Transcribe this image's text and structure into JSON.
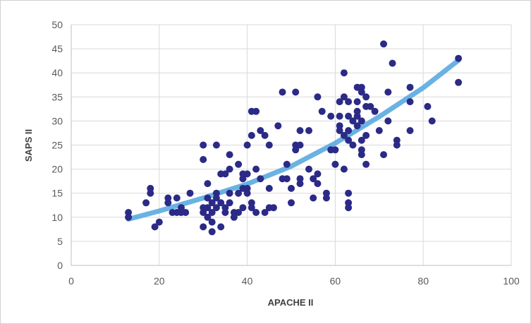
{
  "chart_data": {
    "type": "scatter",
    "title": "",
    "xlabel": "APACHE II",
    "ylabel": "SAPS II",
    "xlim": [
      0,
      100
    ],
    "ylim": [
      0,
      50
    ],
    "xticks": [
      0,
      20,
      40,
      60,
      80,
      100
    ],
    "yticks": [
      0,
      5,
      10,
      15,
      20,
      25,
      30,
      35,
      40,
      45,
      50
    ],
    "grid": true,
    "legend": "none",
    "colors": {
      "points": "#2b2a86",
      "trend": "#5aaae0",
      "grid": "#d9d9d9",
      "axis": "#bfbfbf"
    },
    "trendline": {
      "type": "polynomial",
      "x": [
        13,
        20,
        30,
        40,
        50,
        60,
        70,
        80,
        88
      ],
      "y": [
        9.6,
        11.3,
        14.0,
        16.9,
        20.6,
        25.4,
        30.9,
        36.9,
        42.6
      ]
    },
    "points": [
      [
        13,
        11
      ],
      [
        13,
        10
      ],
      [
        17,
        13
      ],
      [
        18,
        16
      ],
      [
        18,
        15
      ],
      [
        19,
        8
      ],
      [
        20,
        9
      ],
      [
        22,
        14
      ],
      [
        22,
        13
      ],
      [
        23,
        11
      ],
      [
        24,
        11
      ],
      [
        24,
        14
      ],
      [
        25,
        12
      ],
      [
        25,
        11
      ],
      [
        26,
        11
      ],
      [
        27,
        15
      ],
      [
        30,
        25
      ],
      [
        30,
        22
      ],
      [
        30,
        12
      ],
      [
        30,
        11
      ],
      [
        30,
        8
      ],
      [
        31,
        17
      ],
      [
        31,
        14
      ],
      [
        31,
        12
      ],
      [
        31,
        10
      ],
      [
        32,
        13
      ],
      [
        32,
        11
      ],
      [
        32,
        9
      ],
      [
        32,
        7
      ],
      [
        33,
        25
      ],
      [
        33,
        15
      ],
      [
        33,
        14
      ],
      [
        33,
        12
      ],
      [
        34,
        19
      ],
      [
        34,
        13
      ],
      [
        34,
        8
      ],
      [
        35,
        19
      ],
      [
        35,
        11
      ],
      [
        35,
        12
      ],
      [
        36,
        23
      ],
      [
        36,
        20
      ],
      [
        36,
        15
      ],
      [
        36,
        13
      ],
      [
        37,
        11
      ],
      [
        37,
        10
      ],
      [
        38,
        21
      ],
      [
        38,
        15
      ],
      [
        38,
        11
      ],
      [
        39,
        18
      ],
      [
        39,
        16
      ],
      [
        39,
        12
      ],
      [
        39,
        19
      ],
      [
        40,
        25
      ],
      [
        40,
        19
      ],
      [
        40,
        16
      ],
      [
        40,
        15
      ],
      [
        41,
        32
      ],
      [
        41,
        27
      ],
      [
        41,
        13
      ],
      [
        41,
        12
      ],
      [
        42,
        32
      ],
      [
        42,
        20
      ],
      [
        42,
        11
      ],
      [
        43,
        28
      ],
      [
        43,
        18
      ],
      [
        44,
        27
      ],
      [
        44,
        11
      ],
      [
        45,
        25
      ],
      [
        45,
        16
      ],
      [
        45,
        12
      ],
      [
        46,
        12
      ],
      [
        47,
        29
      ],
      [
        48,
        36
      ],
      [
        48,
        18
      ],
      [
        49,
        21
      ],
      [
        49,
        18
      ],
      [
        50,
        16
      ],
      [
        50,
        13
      ],
      [
        51,
        36
      ],
      [
        51,
        25
      ],
      [
        51,
        24
      ],
      [
        52,
        28
      ],
      [
        52,
        25
      ],
      [
        52,
        18
      ],
      [
        52,
        17
      ],
      [
        54,
        28
      ],
      [
        54,
        20
      ],
      [
        55,
        14
      ],
      [
        55,
        18
      ],
      [
        56,
        35
      ],
      [
        56,
        19
      ],
      [
        56,
        17
      ],
      [
        57,
        32
      ],
      [
        58,
        14
      ],
      [
        58,
        15
      ],
      [
        59,
        31
      ],
      [
        59,
        24
      ],
      [
        60,
        24
      ],
      [
        60,
        21
      ],
      [
        61,
        34
      ],
      [
        61,
        31
      ],
      [
        61,
        29
      ],
      [
        61,
        28
      ],
      [
        62,
        40
      ],
      [
        62,
        35
      ],
      [
        62,
        27
      ],
      [
        62,
        20
      ],
      [
        63,
        34
      ],
      [
        63,
        31
      ],
      [
        63,
        28
      ],
      [
        63,
        26
      ],
      [
        63,
        15
      ],
      [
        63,
        13
      ],
      [
        63,
        12
      ],
      [
        64,
        30
      ],
      [
        64,
        25
      ],
      [
        65,
        37
      ],
      [
        65,
        34
      ],
      [
        65,
        32
      ],
      [
        65,
        31
      ],
      [
        65,
        29
      ],
      [
        66,
        37
      ],
      [
        66,
        36
      ],
      [
        66,
        30
      ],
      [
        66,
        26
      ],
      [
        66,
        24
      ],
      [
        66,
        23
      ],
      [
        67,
        35
      ],
      [
        67,
        33
      ],
      [
        67,
        27
      ],
      [
        67,
        21
      ],
      [
        68,
        33
      ],
      [
        69,
        32
      ],
      [
        70,
        28
      ],
      [
        71,
        46
      ],
      [
        71,
        23
      ],
      [
        72,
        36
      ],
      [
        72,
        30
      ],
      [
        73,
        42
      ],
      [
        74,
        26
      ],
      [
        74,
        25
      ],
      [
        77,
        37
      ],
      [
        77,
        34
      ],
      [
        77,
        28
      ],
      [
        81,
        33
      ],
      [
        82,
        30
      ],
      [
        88,
        43
      ],
      [
        88,
        38
      ]
    ]
  }
}
